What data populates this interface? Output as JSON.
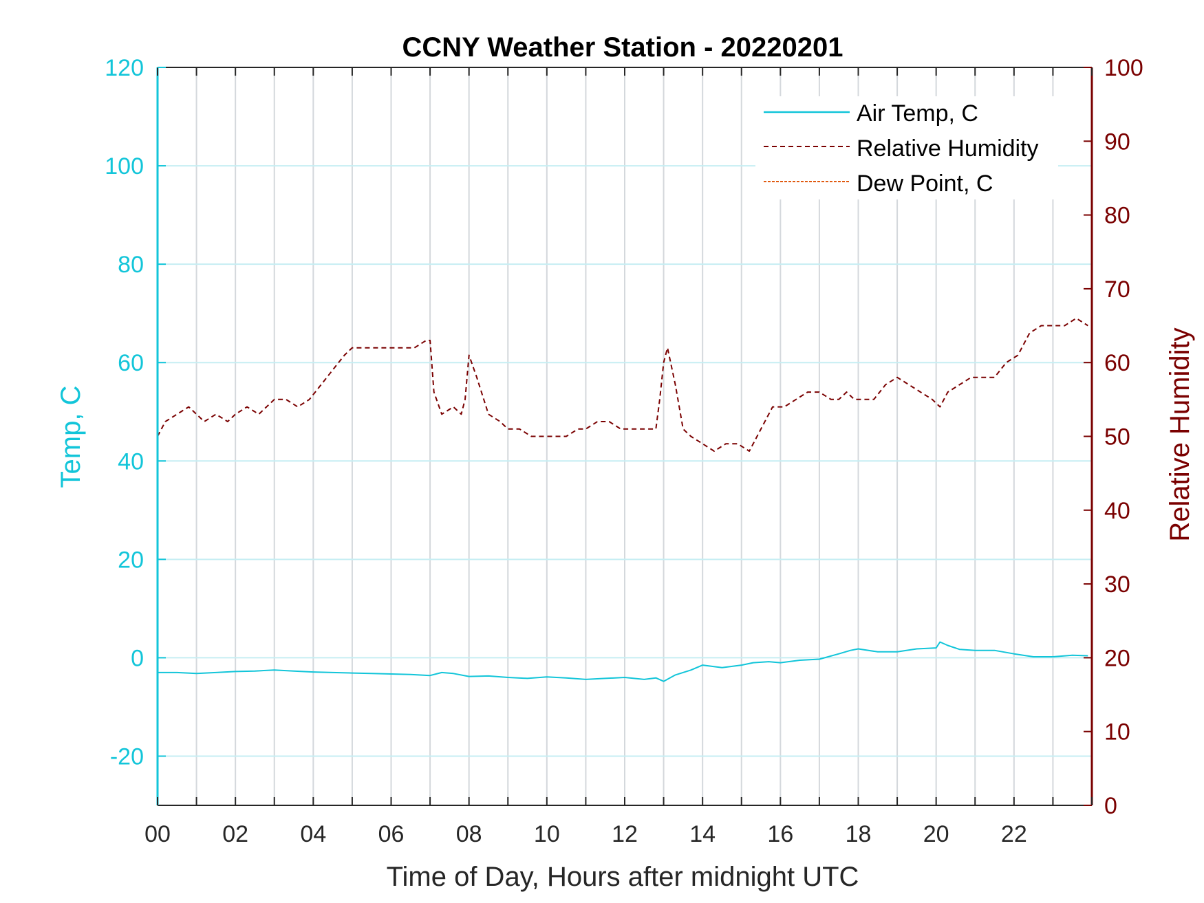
{
  "chart_data": {
    "type": "line",
    "title": "CCNY Weather Station - 20220201",
    "xlabel": "Time of Day, Hours after midnight UTC",
    "ylabel_left": "Temp, C",
    "ylabel_right": "Relative Humidity",
    "xlim": [
      0,
      24
    ],
    "ylim_left": [
      -30,
      120
    ],
    "ylim_right": [
      0,
      100
    ],
    "x_ticks": [
      0,
      2,
      4,
      6,
      8,
      10,
      12,
      14,
      16,
      18,
      20,
      22
    ],
    "x_tick_labels": [
      "00",
      "02",
      "04",
      "06",
      "08",
      "10",
      "12",
      "14",
      "16",
      "18",
      "20",
      "22"
    ],
    "y_left_ticks": [
      -20,
      0,
      20,
      40,
      60,
      80,
      100,
      120
    ],
    "y_left_tick_labels": [
      "-20",
      "0",
      "20",
      "40",
      "60",
      "80",
      "100",
      "120"
    ],
    "y_right_ticks": [
      0,
      10,
      20,
      30,
      40,
      50,
      60,
      70,
      80,
      90,
      100
    ],
    "y_right_tick_labels": [
      "0",
      "10",
      "20",
      "30",
      "40",
      "50",
      "60",
      "70",
      "80",
      "90",
      "100"
    ],
    "grid": true,
    "legend_position": "top-right",
    "colors": {
      "temp": "#12c5d9",
      "rh": "#7a0000",
      "dew": "#e05a10",
      "vgrid": "#d4d8dc",
      "hgrid": "#c6eef3"
    },
    "series": [
      {
        "name": "Air Temp, C",
        "axis": "left",
        "style": "solid",
        "x": [
          0,
          0.5,
          1,
          1.5,
          2,
          2.5,
          3,
          3.5,
          4,
          4.5,
          5,
          5.5,
          6,
          6.5,
          7,
          7.3,
          7.6,
          8,
          8.5,
          9,
          9.5,
          10,
          10.5,
          11,
          11.5,
          12,
          12.5,
          12.8,
          13,
          13.3,
          13.7,
          14,
          14.5,
          15,
          15.3,
          15.7,
          16,
          16.5,
          17,
          17.5,
          17.8,
          18,
          18.5,
          19,
          19.5,
          20,
          20.1,
          20.3,
          20.6,
          21,
          21.5,
          22,
          22.5,
          23,
          23.5,
          23.9
        ],
        "values": [
          -3,
          -3,
          -3.2,
          -3,
          -2.8,
          -2.7,
          -2.5,
          -2.7,
          -2.9,
          -3.0,
          -3.1,
          -3.2,
          -3.3,
          -3.4,
          -3.6,
          -3.0,
          -3.2,
          -3.8,
          -3.7,
          -4.0,
          -4.2,
          -3.9,
          -4.1,
          -4.4,
          -4.2,
          -4.0,
          -4.4,
          -4.1,
          -4.8,
          -3.5,
          -2.5,
          -1.5,
          -2.0,
          -1.5,
          -1.0,
          -0.8,
          -1.0,
          -0.5,
          -0.3,
          0.8,
          1.5,
          1.8,
          1.2,
          1.2,
          1.8,
          2.0,
          3.2,
          2.5,
          1.7,
          1.5,
          1.5,
          0.8,
          0.2,
          0.2,
          0.5,
          0.4
        ]
      },
      {
        "name": "Relative Humidity",
        "axis": "right",
        "style": "dashed",
        "x": [
          0,
          0.2,
          0.5,
          0.8,
          1.0,
          1.2,
          1.5,
          1.8,
          2.0,
          2.3,
          2.6,
          3.0,
          3.3,
          3.6,
          3.9,
          4.2,
          4.5,
          4.8,
          5.0,
          5.3,
          5.6,
          6.0,
          6.3,
          6.6,
          6.9,
          7.0,
          7.1,
          7.3,
          7.6,
          7.8,
          7.9,
          8.0,
          8.2,
          8.5,
          8.8,
          9.0,
          9.3,
          9.6,
          9.9,
          10.2,
          10.5,
          10.8,
          11.0,
          11.3,
          11.6,
          11.9,
          12.2,
          12.5,
          12.8,
          12.9,
          13.0,
          13.1,
          13.3,
          13.5,
          13.7,
          14.0,
          14.3,
          14.6,
          14.9,
          15.2,
          15.5,
          15.8,
          16.1,
          16.4,
          16.7,
          17.0,
          17.3,
          17.5,
          17.7,
          17.9,
          18.1,
          18.4,
          18.7,
          19.0,
          19.3,
          19.6,
          19.9,
          20.1,
          20.3,
          20.6,
          20.9,
          21.2,
          21.5,
          21.8,
          22.1,
          22.4,
          22.7,
          23.0,
          23.3,
          23.6,
          23.9
        ],
        "values": [
          50,
          52,
          53,
          54,
          53,
          52,
          53,
          52,
          53,
          54,
          53,
          55,
          55,
          54,
          55,
          57,
          59,
          61,
          62,
          62,
          62,
          62,
          62,
          62,
          63,
          63,
          56,
          53,
          54,
          53,
          55,
          61,
          58,
          53,
          52,
          51,
          51,
          50,
          50,
          50,
          50,
          51,
          51,
          52,
          52,
          51,
          51,
          51,
          51,
          55,
          60,
          62,
          57,
          51,
          50,
          49,
          48,
          49,
          49,
          48,
          51,
          54,
          54,
          55,
          56,
          56,
          55,
          55,
          56,
          55,
          55,
          55,
          57,
          58,
          57,
          56,
          55,
          54,
          56,
          57,
          58,
          58,
          58,
          60,
          61,
          64,
          65,
          65,
          65,
          66,
          65
        ]
      },
      {
        "name": "Dew Point, C",
        "axis": "left",
        "style": "dash-dot",
        "x": [],
        "values": []
      }
    ]
  }
}
